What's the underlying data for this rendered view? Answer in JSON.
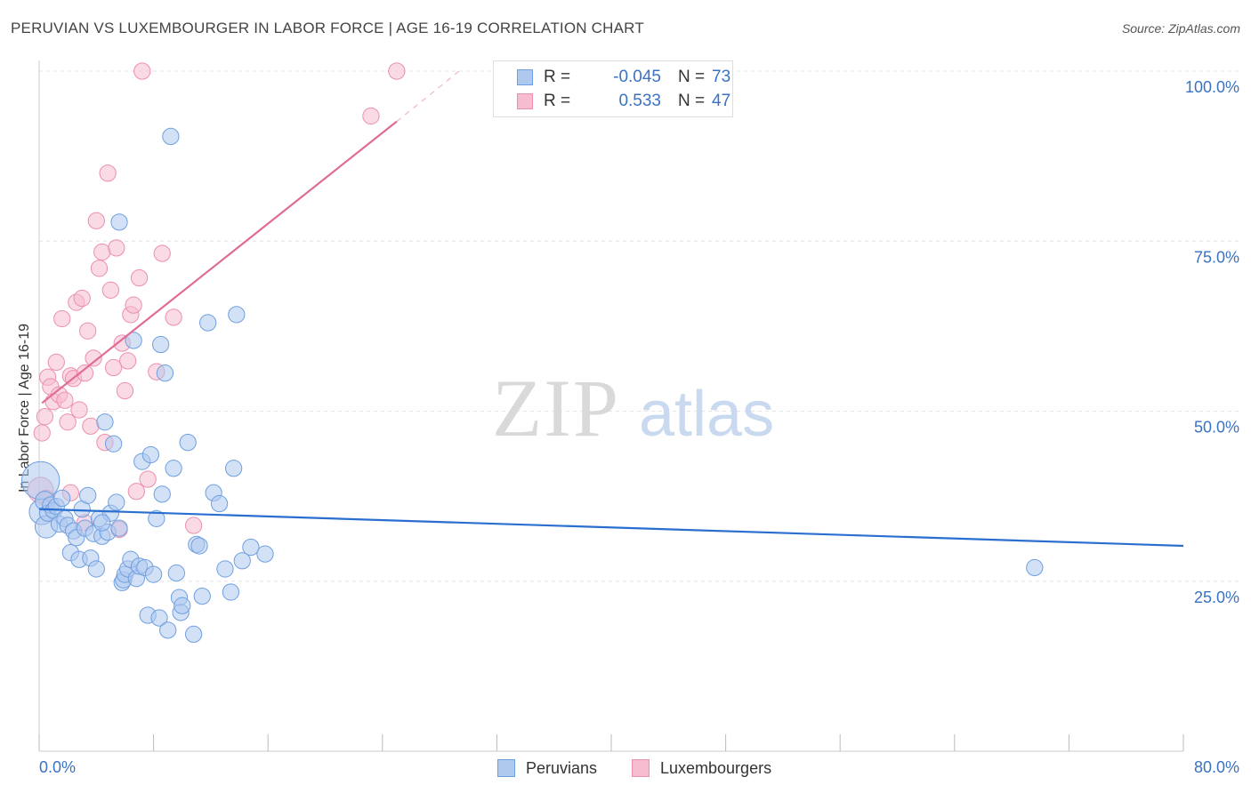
{
  "title": "PERUVIAN VS LUXEMBOURGER IN LABOR FORCE | AGE 16-19 CORRELATION CHART",
  "source": "Source: ZipAtlas.com",
  "watermark": {
    "zip": "ZIP",
    "atlas": "atlas"
  },
  "legend": [
    {
      "r_label": "R =",
      "r_value": "-0.045",
      "n_label": "N =",
      "n_value": "73"
    },
    {
      "r_label": "R =",
      "r_value": "0.533",
      "n_label": "N =",
      "n_value": "47"
    }
  ],
  "bottom_legend": {
    "peruvians": "Peruvians",
    "luxembourgers": "Luxembourgers"
  },
  "colors": {
    "blue_fill": "#aec8ee",
    "blue_stroke": "#6f9fe0",
    "blue_line": "#2a6fd0",
    "pink_fill": "#f6bccf",
    "pink_stroke": "#ec8fae",
    "pink_line": "#e06b93",
    "axis_text": "#3a72c4",
    "grid": "#e4e4e4"
  },
  "chart_data": {
    "type": "scatter",
    "title": "PERUVIAN VS LUXEMBOURGER IN LABOR FORCE | AGE 16-19 CORRELATION CHART",
    "xlabel": "",
    "ylabel": "In Labor Force | Age 16-19",
    "xlim": [
      0,
      80
    ],
    "ylim": [
      0,
      102
    ],
    "x_tick_labels": [
      "0.0%",
      "80.0%"
    ],
    "y_ticks": [
      25,
      50,
      75,
      100
    ],
    "y_tick_labels": [
      "25.0%",
      "50.0%",
      "75.0%",
      "100.0%"
    ],
    "series": [
      {
        "name": "Peruvians",
        "r": -0.045,
        "n": 73,
        "trend": {
          "x": [
            0,
            80
          ],
          "y": [
            35.6,
            30.2
          ]
        },
        "points": [
          [
            0.1,
            39.8,
            24
          ],
          [
            0.2,
            35.2,
            16
          ],
          [
            0.4,
            36.8,
            12
          ],
          [
            0.5,
            33.0,
            14
          ],
          [
            0.6,
            35.0,
            10
          ],
          [
            0.8,
            36.2,
            10
          ],
          [
            1.0,
            35.4,
            10
          ],
          [
            1.2,
            36.0,
            10
          ],
          [
            1.4,
            33.4,
            10
          ],
          [
            1.6,
            37.2,
            10
          ],
          [
            1.8,
            34.2,
            10
          ],
          [
            2.0,
            33.2,
            10
          ],
          [
            2.2,
            29.2,
            10
          ],
          [
            2.4,
            32.4,
            10
          ],
          [
            2.6,
            31.4,
            10
          ],
          [
            2.8,
            28.2,
            10
          ],
          [
            3.0,
            35.6,
            10
          ],
          [
            3.2,
            32.8,
            10
          ],
          [
            3.4,
            37.6,
            10
          ],
          [
            3.6,
            28.4,
            10
          ],
          [
            3.8,
            32.0,
            10
          ],
          [
            4.0,
            26.8,
            10
          ],
          [
            4.2,
            34.2,
            10
          ],
          [
            4.4,
            31.6,
            10
          ],
          [
            4.6,
            48.4,
            10
          ],
          [
            4.8,
            32.2,
            10
          ],
          [
            5.0,
            35.0,
            10
          ],
          [
            5.2,
            45.2,
            10
          ],
          [
            5.4,
            36.6,
            10
          ],
          [
            5.6,
            32.8,
            10
          ],
          [
            5.8,
            24.8,
            10
          ],
          [
            5.9,
            25.2,
            10
          ],
          [
            6.0,
            26.0,
            10
          ],
          [
            6.2,
            26.8,
            10
          ],
          [
            6.4,
            28.2,
            10
          ],
          [
            6.6,
            60.4,
            10
          ],
          [
            6.8,
            25.4,
            10
          ],
          [
            7.0,
            27.2,
            10
          ],
          [
            7.2,
            42.6,
            10
          ],
          [
            7.4,
            27.0,
            10
          ],
          [
            7.6,
            20.0,
            10
          ],
          [
            7.8,
            43.6,
            10
          ],
          [
            8.0,
            26.0,
            10
          ],
          [
            8.2,
            34.2,
            10
          ],
          [
            8.4,
            19.6,
            10
          ],
          [
            8.5,
            59.8,
            10
          ],
          [
            8.6,
            37.8,
            10
          ],
          [
            8.8,
            55.6,
            10
          ],
          [
            9.0,
            17.8,
            10
          ],
          [
            9.2,
            90.4,
            10
          ],
          [
            9.4,
            41.6,
            10
          ],
          [
            9.6,
            26.2,
            10
          ],
          [
            9.8,
            22.6,
            10
          ],
          [
            9.9,
            20.4,
            10
          ],
          [
            10.0,
            21.4,
            10
          ],
          [
            10.4,
            45.4,
            10
          ],
          [
            10.8,
            17.2,
            10
          ],
          [
            11.0,
            30.4,
            10
          ],
          [
            11.2,
            30.2,
            10
          ],
          [
            11.4,
            22.8,
            10
          ],
          [
            11.8,
            63.0,
            10
          ],
          [
            12.2,
            38.0,
            10
          ],
          [
            12.6,
            36.4,
            10
          ],
          [
            13.0,
            26.8,
            10
          ],
          [
            13.4,
            23.4,
            10
          ],
          [
            14.8,
            30.0,
            10
          ],
          [
            5.6,
            77.8,
            10
          ],
          [
            4.4,
            33.6,
            10
          ],
          [
            13.6,
            41.6,
            10
          ],
          [
            14.2,
            28.0,
            10
          ],
          [
            13.8,
            64.2,
            10
          ],
          [
            15.8,
            29.0,
            10
          ],
          [
            69.6,
            27.0,
            10
          ]
        ]
      },
      {
        "name": "Luxembourgers",
        "r": 0.533,
        "n": 47,
        "trend": {
          "x": [
            0.2,
            25.0
          ],
          "y": [
            51.2,
            92.6
          ]
        },
        "trend_dashed": {
          "x": [
            25.0,
            29.6
          ],
          "y": [
            92.6,
            100.4
          ]
        },
        "points": [
          [
            0.1,
            38.4,
            16
          ],
          [
            0.2,
            46.8,
            10
          ],
          [
            0.4,
            49.2,
            10
          ],
          [
            0.5,
            37.2,
            10
          ],
          [
            0.6,
            55.0,
            10
          ],
          [
            0.8,
            53.6,
            10
          ],
          [
            1.0,
            51.4,
            10
          ],
          [
            1.2,
            57.2,
            10
          ],
          [
            1.4,
            52.4,
            10
          ],
          [
            1.6,
            63.6,
            10
          ],
          [
            1.8,
            51.6,
            10
          ],
          [
            2.0,
            48.4,
            10
          ],
          [
            2.2,
            55.2,
            10
          ],
          [
            2.4,
            54.8,
            10
          ],
          [
            2.6,
            66.0,
            10
          ],
          [
            2.8,
            50.2,
            10
          ],
          [
            3.0,
            66.6,
            10
          ],
          [
            3.2,
            55.6,
            10
          ],
          [
            3.4,
            61.8,
            10
          ],
          [
            3.6,
            47.8,
            10
          ],
          [
            3.8,
            57.8,
            10
          ],
          [
            4.0,
            78.0,
            10
          ],
          [
            4.2,
            71.0,
            10
          ],
          [
            4.4,
            73.4,
            10
          ],
          [
            4.6,
            45.4,
            10
          ],
          [
            4.8,
            85.0,
            10
          ],
          [
            5.0,
            67.8,
            10
          ],
          [
            5.2,
            56.4,
            10
          ],
          [
            5.4,
            74.0,
            10
          ],
          [
            5.6,
            32.6,
            10
          ],
          [
            5.8,
            60.0,
            10
          ],
          [
            6.0,
            53.0,
            10
          ],
          [
            6.2,
            57.4,
            10
          ],
          [
            6.4,
            64.2,
            10
          ],
          [
            6.6,
            65.6,
            10
          ],
          [
            6.8,
            38.2,
            10
          ],
          [
            7.0,
            69.6,
            10
          ],
          [
            7.2,
            100.0,
            10
          ],
          [
            7.6,
            40.0,
            10
          ],
          [
            8.2,
            55.8,
            10
          ],
          [
            8.6,
            73.2,
            10
          ],
          [
            9.4,
            63.8,
            10
          ],
          [
            10.8,
            33.2,
            10
          ],
          [
            23.2,
            93.4,
            10
          ],
          [
            25.0,
            100.0,
            10
          ],
          [
            2.2,
            38.0,
            10
          ],
          [
            3.2,
            33.6,
            10
          ]
        ]
      }
    ]
  }
}
